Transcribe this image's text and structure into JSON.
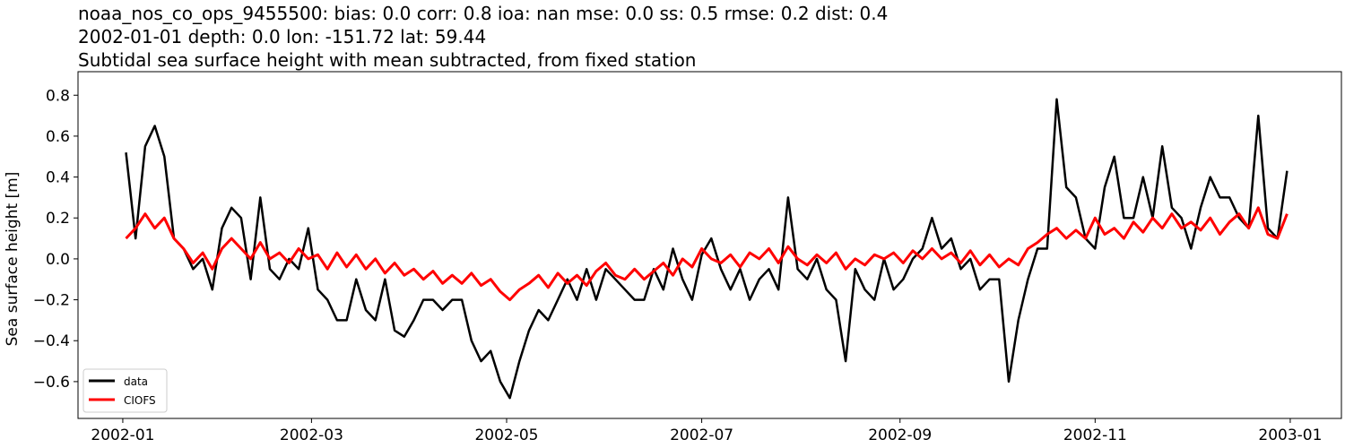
{
  "chart_data": {
    "type": "line",
    "title_lines": [
      "noaa_nos_co_ops_9455500: bias: 0.0  corr: 0.8  ioa: nan  mse: 0.0  ss: 0.5  rmse: 0.2  dist: 0.4",
      "2002-01-01 depth: 0.0 lon: -151.72 lat: 59.44",
      "Subtidal sea surface height with mean subtracted, from fixed station"
    ],
    "xlabel": "",
    "ylabel": "Sea surface height [m]",
    "xlim": [
      "2001-12-18",
      "2003-01-17"
    ],
    "ylim": [
      -0.78,
      0.915
    ],
    "x_ticks": [
      "2002-01",
      "2002-03",
      "2002-05",
      "2002-07",
      "2002-09",
      "2002-11",
      "2003-01"
    ],
    "y_ticks": [
      -0.6,
      -0.4,
      -0.2,
      0.0,
      0.2,
      0.4,
      0.6,
      0.8
    ],
    "y_tick_labels": [
      "−0.6",
      "−0.4",
      "−0.2",
      "0.0",
      "0.2",
      "0.4",
      "0.6",
      "0.8"
    ],
    "grid": false,
    "legend_position": "lower-left",
    "x": [
      "2002-01-02",
      "2002-01-05",
      "2002-01-08",
      "2002-01-11",
      "2002-01-14",
      "2002-01-17",
      "2002-01-20",
      "2002-01-23",
      "2002-01-26",
      "2002-01-29",
      "2002-02-01",
      "2002-02-04",
      "2002-02-07",
      "2002-02-10",
      "2002-02-13",
      "2002-02-16",
      "2002-02-19",
      "2002-02-22",
      "2002-02-25",
      "2002-02-28",
      "2002-03-03",
      "2002-03-06",
      "2002-03-09",
      "2002-03-12",
      "2002-03-15",
      "2002-03-18",
      "2002-03-21",
      "2002-03-24",
      "2002-03-27",
      "2002-03-30",
      "2002-04-02",
      "2002-04-05",
      "2002-04-08",
      "2002-04-11",
      "2002-04-14",
      "2002-04-17",
      "2002-04-20",
      "2002-04-23",
      "2002-04-26",
      "2002-04-29",
      "2002-05-02",
      "2002-05-05",
      "2002-05-08",
      "2002-05-11",
      "2002-05-14",
      "2002-05-17",
      "2002-05-20",
      "2002-05-23",
      "2002-05-26",
      "2002-05-29",
      "2002-06-01",
      "2002-06-04",
      "2002-06-07",
      "2002-06-10",
      "2002-06-13",
      "2002-06-16",
      "2002-06-19",
      "2002-06-22",
      "2002-06-25",
      "2002-06-28",
      "2002-07-01",
      "2002-07-04",
      "2002-07-07",
      "2002-07-10",
      "2002-07-13",
      "2002-07-16",
      "2002-07-19",
      "2002-07-22",
      "2002-07-25",
      "2002-07-28",
      "2002-07-31",
      "2002-08-03",
      "2002-08-06",
      "2002-08-09",
      "2002-08-12",
      "2002-08-15",
      "2002-08-18",
      "2002-08-21",
      "2002-08-24",
      "2002-08-27",
      "2002-08-30",
      "2002-09-02",
      "2002-09-05",
      "2002-09-08",
      "2002-09-11",
      "2002-09-14",
      "2002-09-17",
      "2002-09-20",
      "2002-09-23",
      "2002-09-26",
      "2002-09-29",
      "2002-10-02",
      "2002-10-05",
      "2002-10-08",
      "2002-10-11",
      "2002-10-14",
      "2002-10-17",
      "2002-10-20",
      "2002-10-23",
      "2002-10-26",
      "2002-10-29",
      "2002-11-01",
      "2002-11-04",
      "2002-11-07",
      "2002-11-10",
      "2002-11-13",
      "2002-11-16",
      "2002-11-19",
      "2002-11-22",
      "2002-11-25",
      "2002-11-28",
      "2002-12-01",
      "2002-12-04",
      "2002-12-07",
      "2002-12-10",
      "2002-12-13",
      "2002-12-16",
      "2002-12-19",
      "2002-12-22",
      "2002-12-25",
      "2002-12-28",
      "2002-12-31"
    ],
    "series": [
      {
        "name": "data",
        "color": "#000000",
        "values": [
          0.52,
          0.1,
          0.55,
          0.65,
          0.5,
          0.1,
          0.05,
          -0.05,
          0.0,
          -0.15,
          0.15,
          0.25,
          0.2,
          -0.1,
          0.3,
          -0.05,
          -0.1,
          0.0,
          -0.05,
          0.15,
          -0.15,
          -0.2,
          -0.3,
          -0.3,
          -0.1,
          -0.25,
          -0.3,
          -0.1,
          -0.35,
          -0.38,
          -0.3,
          -0.2,
          -0.2,
          -0.25,
          -0.2,
          -0.2,
          -0.4,
          -0.5,
          -0.45,
          -0.6,
          -0.68,
          -0.5,
          -0.35,
          -0.25,
          -0.3,
          -0.2,
          -0.1,
          -0.2,
          -0.05,
          -0.2,
          -0.05,
          -0.1,
          -0.15,
          -0.2,
          -0.2,
          -0.05,
          -0.15,
          0.05,
          -0.1,
          -0.2,
          0.02,
          0.1,
          -0.05,
          -0.15,
          -0.05,
          -0.2,
          -0.1,
          -0.05,
          -0.15,
          0.3,
          -0.05,
          -0.1,
          0.0,
          -0.15,
          -0.2,
          -0.5,
          -0.05,
          -0.15,
          -0.2,
          0.0,
          -0.15,
          -0.1,
          0.0,
          0.05,
          0.2,
          0.05,
          0.1,
          -0.05,
          0.0,
          -0.15,
          -0.1,
          -0.1,
          -0.6,
          -0.3,
          -0.1,
          0.05,
          0.05,
          0.78,
          0.35,
          0.3,
          0.1,
          0.05,
          0.35,
          0.5,
          0.2,
          0.2,
          0.4,
          0.2,
          0.55,
          0.25,
          0.2,
          0.05,
          0.25,
          0.4,
          0.3,
          0.3,
          0.2,
          0.15,
          0.7,
          0.15,
          0.1,
          0.43
        ]
      },
      {
        "name": "CIOFS",
        "color": "#ff0000",
        "values": [
          0.1,
          0.15,
          0.22,
          0.15,
          0.2,
          0.1,
          0.05,
          -0.02,
          0.03,
          -0.05,
          0.05,
          0.1,
          0.05,
          0.0,
          0.08,
          0.0,
          0.03,
          -0.02,
          0.05,
          0.0,
          0.02,
          -0.05,
          0.03,
          -0.04,
          0.02,
          -0.05,
          0.0,
          -0.07,
          -0.02,
          -0.08,
          -0.05,
          -0.1,
          -0.06,
          -0.12,
          -0.08,
          -0.12,
          -0.07,
          -0.13,
          -0.1,
          -0.16,
          -0.2,
          -0.15,
          -0.12,
          -0.08,
          -0.14,
          -0.07,
          -0.12,
          -0.08,
          -0.13,
          -0.06,
          -0.02,
          -0.08,
          -0.1,
          -0.05,
          -0.1,
          -0.06,
          -0.02,
          -0.08,
          0.0,
          -0.04,
          0.05,
          0.0,
          -0.02,
          0.02,
          -0.04,
          0.03,
          0.0,
          0.05,
          -0.02,
          0.06,
          0.0,
          -0.03,
          0.02,
          -0.02,
          0.03,
          -0.05,
          0.0,
          -0.03,
          0.02,
          0.0,
          0.03,
          -0.02,
          0.04,
          0.0,
          0.05,
          0.0,
          0.03,
          -0.02,
          0.04,
          -0.03,
          0.02,
          -0.04,
          0.0,
          -0.03,
          0.05,
          0.08,
          0.12,
          0.15,
          0.1,
          0.14,
          0.1,
          0.2,
          0.12,
          0.15,
          0.1,
          0.18,
          0.13,
          0.2,
          0.15,
          0.22,
          0.15,
          0.18,
          0.14,
          0.2,
          0.12,
          0.18,
          0.22,
          0.15,
          0.25,
          0.12,
          0.1,
          0.22
        ]
      }
    ]
  }
}
